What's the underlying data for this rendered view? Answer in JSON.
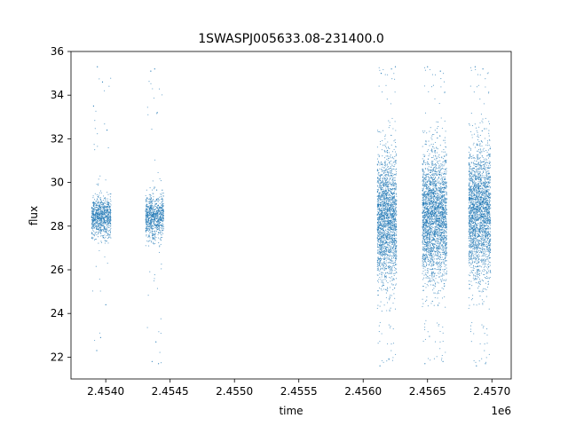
{
  "chart_data": {
    "type": "scatter",
    "title": "1SWASPJ005633.08-231400.0",
    "xlabel": "time",
    "ylabel": "flux",
    "x_offset_label": "1e6",
    "xlim": [
      2453730,
      2457150
    ],
    "ylim": [
      21,
      36
    ],
    "xticks": [
      2454000,
      2454500,
      2455000,
      2455500,
      2456000,
      2456500,
      2457000
    ],
    "xtick_labels": [
      "2.4540",
      "2.4545",
      "2.4550",
      "2.4555",
      "2.4560",
      "2.4565",
      "2.4570"
    ],
    "yticks": [
      22,
      24,
      26,
      28,
      30,
      32,
      34,
      36
    ],
    "ytick_labels": [
      "22",
      "24",
      "26",
      "28",
      "30",
      "32",
      "34",
      "36"
    ],
    "grid": false,
    "marker_color": "#1f77b4",
    "series": [
      {
        "segments": [
          {
            "t_start": 2453890,
            "t_end": 2454040,
            "median": 28.4,
            "core_sd": 0.45,
            "outlier_low": 22.3,
            "outlier_high": 35.3
          },
          {
            "t_start": 2454310,
            "t_end": 2454450,
            "median": 28.4,
            "core_sd": 0.5,
            "outlier_low": 21.7,
            "outlier_high": 35.2
          },
          {
            "t_start": 2456110,
            "t_end": 2456260,
            "median": 28.3,
            "core_sd": 1.5,
            "outlier_low": 21.6,
            "outlier_high": 35.3
          },
          {
            "t_start": 2456460,
            "t_end": 2456650,
            "median": 28.4,
            "core_sd": 1.45,
            "outlier_low": 21.7,
            "outlier_high": 35.3
          },
          {
            "t_start": 2456820,
            "t_end": 2456990,
            "median": 28.6,
            "core_sd": 1.5,
            "outlier_low": 21.6,
            "outlier_high": 35.3
          }
        ],
        "sampled_points": [
          [
            2453905,
            33.5
          ],
          [
            2453935,
            35.3
          ],
          [
            2453975,
            34.6
          ],
          [
            2454010,
            32.4
          ],
          [
            2453930,
            22.3
          ],
          [
            2453960,
            22.9
          ],
          [
            2454000,
            24.4
          ],
          [
            2454350,
            35.1
          ],
          [
            2454380,
            35.2
          ],
          [
            2454400,
            33.2
          ],
          [
            2454360,
            21.8
          ],
          [
            2454410,
            21.7
          ],
          [
            2454390,
            22.7
          ],
          [
            2456140,
            35.0
          ],
          [
            2456220,
            35.2
          ],
          [
            2456250,
            35.3
          ],
          [
            2456130,
            21.6
          ],
          [
            2456200,
            21.9
          ],
          [
            2456500,
            35.3
          ],
          [
            2456600,
            35.1
          ],
          [
            2456480,
            21.7
          ],
          [
            2456620,
            21.8
          ],
          [
            2456870,
            35.3
          ],
          [
            2456930,
            35.2
          ],
          [
            2456880,
            21.6
          ],
          [
            2456950,
            21.7
          ]
        ]
      }
    ]
  }
}
